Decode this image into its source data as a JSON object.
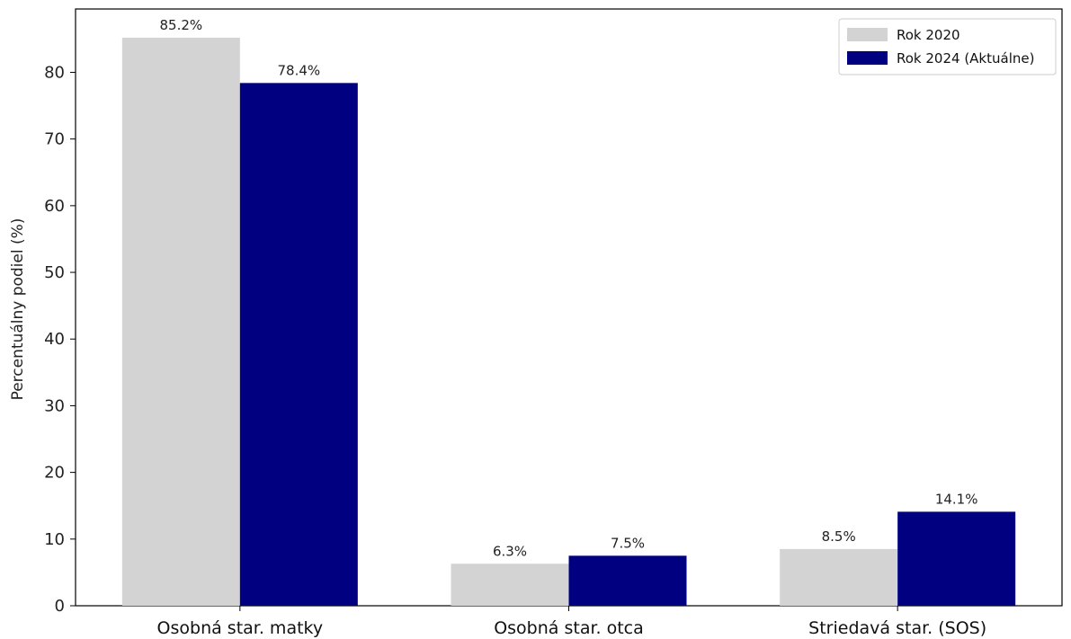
{
  "chart_data": {
    "type": "bar",
    "categories": [
      "Osobná star. matky",
      "Osobná star. otca",
      "Striedavá star. (SOS)"
    ],
    "series": [
      {
        "name": "Rok 2020",
        "values": [
          85.2,
          6.3,
          8.5
        ],
        "labels": [
          "85.2%",
          "6.3%",
          "8.5%"
        ],
        "color": "#d3d3d3"
      },
      {
        "name": "Rok 2024 (Aktuálne)",
        "values": [
          78.4,
          7.5,
          14.1
        ],
        "labels": [
          "78.4%",
          "7.5%",
          "14.1%"
        ],
        "color": "#000080"
      }
    ],
    "title": "",
    "xlabel": "",
    "ylabel": "Percentuálny podiel (%)",
    "ylim": [
      0,
      89.5
    ],
    "yticks": [
      0,
      10,
      20,
      30,
      40,
      50,
      60,
      70,
      80
    ],
    "grid": false,
    "legend_position": "top-right"
  }
}
